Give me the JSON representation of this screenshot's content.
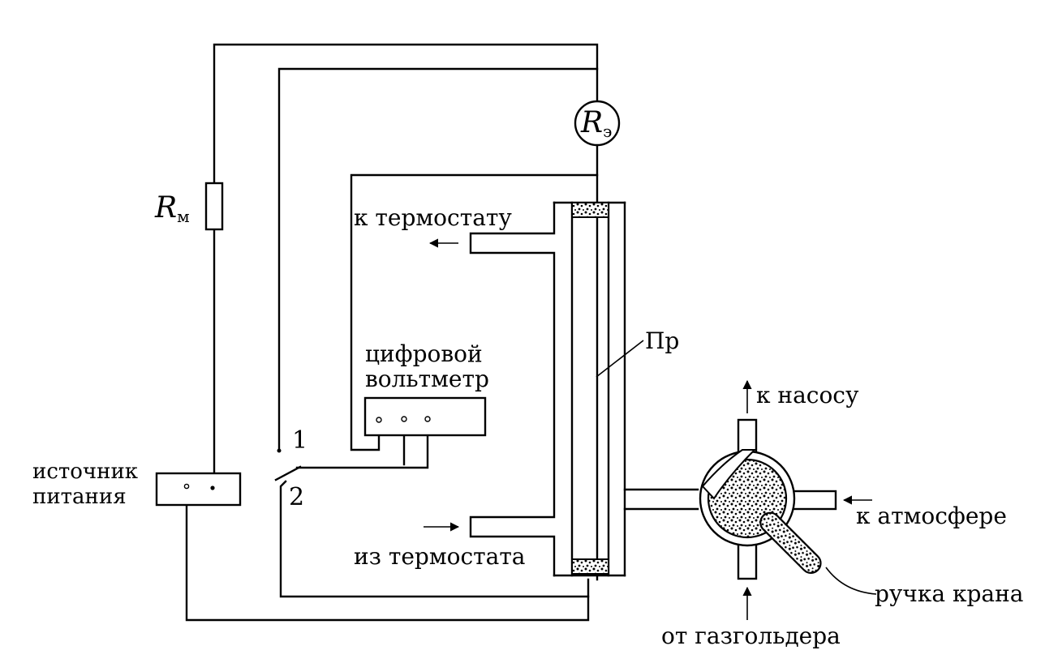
{
  "labels": {
    "r_m_main": "R",
    "r_m_sub": "м",
    "r_e_main": "R",
    "r_e_sub": "э",
    "to_thermostat": "к термостату",
    "from_thermostat": "из термостата",
    "voltmeter_line1": "цифровой",
    "voltmeter_line2": "вольтметр",
    "power_line1": "источник",
    "power_line2": "питания",
    "switch_pos1": "1",
    "switch_pos2": "2",
    "conductor": "Пр",
    "to_pump": "к насосу",
    "to_atmosphere": "к атмосфере",
    "valve_handle": "ручка крана",
    "from_gasholder": "от газгольдера"
  }
}
